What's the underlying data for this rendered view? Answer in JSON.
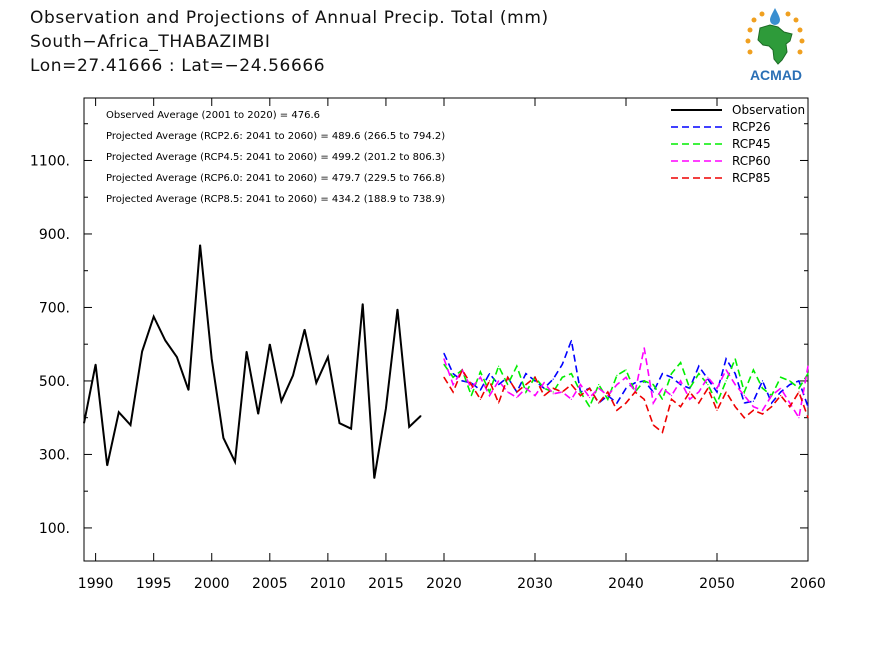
{
  "title": {
    "line1": "Observation and Projections of Annual Precip. Total (mm)",
    "line2": "South−Africa_THABAZIMBI",
    "line3": "Lon=27.41666 : Lat=−24.56666"
  },
  "logo": {
    "text": "ACMAD",
    "icon": "acmad-africa-logo-icon"
  },
  "colors": {
    "observation": "#000000",
    "rcp26": "#0000ff",
    "rcp45": "#00ee00",
    "rcp60": "#ff00ff",
    "rcp85": "#ee0000"
  },
  "annotations": [
    "Observed Average (2001 to 2020) = 476.6",
    "Projected Average (RCP2.6: 2041 to 2060) = 489.6 (266.5 to 794.2)",
    "Projected Average (RCP4.5: 2041 to 2060) = 499.2 (201.2 to 806.3)",
    "Projected Average (RCP6.0: 2041 to 2060) = 479.7 (229.5 to 766.8)",
    "Projected Average (RCP8.5: 2041 to 2060) = 434.2 (188.9 to 738.9)"
  ],
  "chart_data": {
    "type": "line",
    "xlim": [
      1989,
      2060
    ],
    "ylim": [
      10,
      1270
    ],
    "x_ticks": [
      1990,
      1995,
      2000,
      2005,
      2010,
      2015,
      2020,
      2030,
      2040,
      2050,
      2060
    ],
    "x_tick_labels": [
      "1990",
      "1995",
      "2000",
      "2005",
      "2010",
      "2015",
      "2020",
      "2030",
      "2040",
      "2050",
      "2060"
    ],
    "y_ticks": [
      100,
      300,
      500,
      700,
      900,
      1100
    ],
    "y_tick_labels": [
      "100.",
      "300.",
      "500.",
      "700.",
      "900.",
      "1100."
    ],
    "grid": false,
    "legend_position": "top-right",
    "series": [
      {
        "name": "Observation",
        "style": "solid",
        "color": "#000000",
        "x": [
          1989,
          1990,
          1991,
          1992,
          1993,
          1994,
          1995,
          1996,
          1997,
          1998,
          1999,
          2000,
          2001,
          2002,
          2003,
          2004,
          2005,
          2006,
          2007,
          2008,
          2009,
          2010,
          2011,
          2012,
          2013,
          2014,
          2015,
          2016,
          2017,
          2018,
          2019,
          2020
        ],
        "values": [
          385,
          545,
          270,
          415,
          380,
          580,
          675,
          610,
          565,
          475,
          870,
          560,
          345,
          280,
          580,
          410,
          600,
          445,
          515,
          640,
          495,
          565,
          385,
          370,
          710,
          235,
          425,
          695,
          375,
          405,
          null,
          null
        ]
      },
      {
        "name": "RCP26",
        "style": "dashed",
        "color": "#0000ff",
        "x": [
          2020,
          2021,
          2022,
          2023,
          2024,
          2025,
          2026,
          2027,
          2028,
          2029,
          2030,
          2031,
          2032,
          2033,
          2034,
          2035,
          2036,
          2037,
          2038,
          2039,
          2040,
          2041,
          2042,
          2043,
          2044,
          2045,
          2046,
          2047,
          2048,
          2049,
          2050,
          2051,
          2052,
          2053,
          2054,
          2055,
          2056,
          2057,
          2058,
          2059,
          2060
        ],
        "values": [
          575,
          520,
          500,
          495,
          475,
          520,
          490,
          510,
          470,
          520,
          500,
          480,
          505,
          545,
          610,
          470,
          480,
          440,
          460,
          440,
          480,
          495,
          500,
          470,
          520,
          510,
          490,
          480,
          540,
          505,
          470,
          560,
          520,
          440,
          445,
          500,
          440,
          470,
          490,
          500,
          430
        ]
      },
      {
        "name": "RCP45",
        "style": "dashed",
        "color": "#00ee00",
        "x": [
          2020,
          2021,
          2022,
          2023,
          2024,
          2025,
          2026,
          2027,
          2028,
          2029,
          2030,
          2031,
          2032,
          2033,
          2034,
          2035,
          2036,
          2037,
          2038,
          2039,
          2040,
          2041,
          2042,
          2043,
          2044,
          2045,
          2046,
          2047,
          2048,
          2049,
          2050,
          2051,
          2052,
          2053,
          2054,
          2055,
          2056,
          2057,
          2058,
          2059,
          2060
        ],
        "values": [
          545,
          510,
          530,
          460,
          525,
          470,
          540,
          490,
          540,
          470,
          510,
          480,
          470,
          510,
          520,
          470,
          430,
          490,
          450,
          515,
          530,
          470,
          500,
          490,
          450,
          520,
          550,
          480,
          520,
          490,
          440,
          500,
          560,
          470,
          530,
          480,
          460,
          510,
          500,
          480,
          520
        ]
      },
      {
        "name": "RCP60",
        "style": "dashed",
        "color": "#ff00ff",
        "x": [
          2020,
          2021,
          2022,
          2023,
          2024,
          2025,
          2026,
          2027,
          2028,
          2029,
          2030,
          2031,
          2032,
          2033,
          2034,
          2035,
          2036,
          2037,
          2038,
          2039,
          2040,
          2041,
          2042,
          2043,
          2044,
          2045,
          2046,
          2047,
          2048,
          2049,
          2050,
          2051,
          2052,
          2053,
          2054,
          2055,
          2056,
          2057,
          2058,
          2059,
          2060
        ],
        "values": [
          560,
          490,
          530,
          480,
          510,
          460,
          500,
          470,
          455,
          480,
          460,
          495,
          465,
          470,
          450,
          490,
          455,
          480,
          460,
          490,
          510,
          470,
          590,
          440,
          480,
          460,
          500,
          450,
          470,
          510,
          480,
          530,
          490,
          460,
          430,
          420,
          460,
          480,
          440,
          400,
          540
        ]
      },
      {
        "name": "RCP85",
        "style": "dashed",
        "color": "#ee0000",
        "x": [
          2020,
          2021,
          2022,
          2023,
          2024,
          2025,
          2026,
          2027,
          2028,
          2029,
          2030,
          2031,
          2032,
          2033,
          2034,
          2035,
          2036,
          2037,
          2038,
          2039,
          2040,
          2041,
          2042,
          2043,
          2044,
          2045,
          2046,
          2047,
          2048,
          2049,
          2050,
          2051,
          2052,
          2053,
          2054,
          2055,
          2056,
          2057,
          2058,
          2059,
          2060
        ],
        "values": [
          510,
          470,
          530,
          490,
          450,
          500,
          440,
          510,
          470,
          490,
          510,
          460,
          480,
          470,
          490,
          460,
          480,
          440,
          470,
          420,
          440,
          470,
          450,
          380,
          360,
          450,
          430,
          470,
          440,
          480,
          420,
          470,
          430,
          400,
          420,
          410,
          430,
          460,
          430,
          470,
          400
        ]
      }
    ]
  }
}
